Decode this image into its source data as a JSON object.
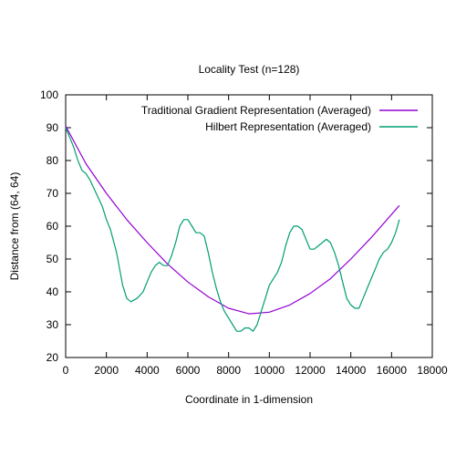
{
  "chart_data": {
    "type": "line",
    "title": "Locality Test (n=128)",
    "xlabel": "Coordinate in 1-dimension",
    "ylabel": "Distance from (64, 64)",
    "xlim": [
      0,
      18000
    ],
    "ylim": [
      20,
      100
    ],
    "xticks": [
      0,
      2000,
      4000,
      6000,
      8000,
      10000,
      12000,
      14000,
      16000,
      18000
    ],
    "yticks": [
      20,
      30,
      40,
      50,
      60,
      70,
      80,
      90,
      100
    ],
    "grid": false,
    "legend_position": "top-right",
    "series": [
      {
        "name": "Traditional Gradient Representation (Averaged)",
        "color": "#9400d3",
        "x": [
          0,
          1000,
          2000,
          3000,
          4000,
          5000,
          6000,
          7000,
          8000,
          9000,
          10000,
          11000,
          12000,
          13000,
          14000,
          15000,
          16383
        ],
        "y": [
          90.5,
          79.0,
          70.0,
          62.0,
          55.0,
          48.5,
          43.0,
          38.5,
          35.0,
          33.3,
          33.8,
          36.0,
          39.5,
          44.0,
          50.0,
          56.5,
          66.3
        ]
      },
      {
        "name": "Hilbert Representation (Averaged)",
        "color": "#009e73",
        "x": [
          0,
          200,
          400,
          600,
          800,
          1000,
          1200,
          1500,
          1800,
          2000,
          2200,
          2500,
          2800,
          3000,
          3200,
          3500,
          3800,
          4000,
          4200,
          4400,
          4600,
          4800,
          5000,
          5200,
          5400,
          5600,
          5800,
          6000,
          6200,
          6400,
          6600,
          6800,
          7000,
          7200,
          7400,
          7600,
          7800,
          8000,
          8200,
          8400,
          8600,
          8800,
          9000,
          9200,
          9400,
          9600,
          9800,
          10000,
          10200,
          10400,
          10600,
          10800,
          11000,
          11200,
          11400,
          11600,
          11800,
          12000,
          12200,
          12400,
          12600,
          12800,
          13000,
          13200,
          13400,
          13600,
          13800,
          14000,
          14200,
          14400,
          14600,
          14800,
          15000,
          15200,
          15400,
          15600,
          15800,
          16000,
          16200,
          16383
        ],
        "y": [
          90,
          87,
          84,
          80,
          77,
          76,
          74,
          70,
          66,
          62,
          59,
          52,
          42,
          38,
          37,
          38,
          40,
          43,
          46,
          48,
          49,
          48,
          48,
          51,
          55,
          60,
          62,
          62,
          60,
          58,
          58,
          57,
          52,
          46,
          41,
          37,
          34,
          32,
          30,
          28,
          28,
          29,
          29,
          28,
          30,
          34,
          38,
          42,
          44,
          46,
          49,
          54,
          58,
          60,
          60,
          59,
          56,
          53,
          53,
          54,
          55,
          56,
          55,
          52,
          48,
          43,
          38,
          36,
          35,
          35,
          38,
          41,
          44,
          47,
          50,
          52,
          53,
          55,
          58,
          62
        ]
      }
    ]
  }
}
